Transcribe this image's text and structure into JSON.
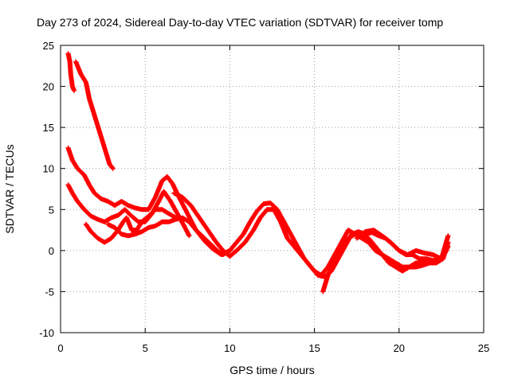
{
  "chart_data": {
    "type": "scatter",
    "title": "Day 273 of 2024, Sidereal Day-to-day VTEC variation (SDTVAR) for receiver tomp",
    "xlabel": "GPS time / hours",
    "ylabel": "SDTVAR / TECUs",
    "xlim": [
      0,
      25
    ],
    "ylim": [
      -10,
      25
    ],
    "xticks": [
      0,
      5,
      10,
      15,
      20,
      25
    ],
    "yticks": [
      -10,
      -5,
      0,
      5,
      10,
      15,
      20,
      25
    ],
    "grid": true,
    "marker": "+",
    "series_color": "#ff0000",
    "series": [
      {
        "name": "track-1",
        "points": [
          [
            0.45,
            24.0
          ],
          [
            0.55,
            23.0
          ],
          [
            0.6,
            21.5
          ],
          [
            0.7,
            20.0
          ],
          [
            0.8,
            19.5
          ]
        ]
      },
      {
        "name": "track-2",
        "points": [
          [
            0.9,
            23.0
          ],
          [
            1.2,
            21.5
          ],
          [
            1.5,
            20.5
          ],
          [
            1.7,
            18.5
          ],
          [
            2.0,
            16.5
          ],
          [
            2.3,
            14.5
          ],
          [
            2.6,
            12.5
          ],
          [
            2.9,
            10.5
          ],
          [
            3.1,
            10.0
          ]
        ]
      },
      {
        "name": "track-3",
        "points": [
          [
            0.45,
            12.5
          ],
          [
            0.7,
            11.0
          ],
          [
            1.0,
            10.0
          ],
          [
            1.4,
            9.2
          ],
          [
            1.7,
            8.0
          ],
          [
            2.0,
            7.0
          ],
          [
            2.4,
            6.3
          ],
          [
            2.8,
            6.0
          ],
          [
            3.2,
            5.5
          ],
          [
            3.6,
            6.0
          ],
          [
            4.0,
            5.5
          ],
          [
            4.4,
            5.2
          ],
          [
            4.8,
            5.0
          ],
          [
            5.2,
            5.0
          ],
          [
            5.6,
            6.5
          ],
          [
            6.0,
            8.5
          ],
          [
            6.3,
            9.0
          ],
          [
            6.6,
            8.2
          ],
          [
            7.0,
            6.5
          ],
          [
            7.5,
            4.5
          ],
          [
            8.0,
            2.5
          ],
          [
            8.5,
            1.2
          ],
          [
            9.0,
            0.2
          ],
          [
            9.5,
            -0.5
          ],
          [
            10.0,
            0.0
          ]
        ]
      },
      {
        "name": "track-4",
        "points": [
          [
            0.45,
            8.0
          ],
          [
            0.7,
            7.0
          ],
          [
            1.0,
            6.0
          ],
          [
            1.4,
            5.0
          ],
          [
            1.8,
            4.2
          ],
          [
            2.2,
            3.8
          ],
          [
            2.6,
            3.5
          ],
          [
            3.0,
            4.0
          ],
          [
            3.4,
            4.3
          ],
          [
            3.8,
            5.0
          ],
          [
            4.2,
            4.2
          ],
          [
            4.6,
            3.5
          ],
          [
            5.0,
            3.5
          ],
          [
            5.4,
            4.5
          ],
          [
            5.8,
            6.0
          ],
          [
            6.1,
            7.2
          ],
          [
            6.5,
            6.0
          ],
          [
            6.9,
            4.5
          ],
          [
            7.3,
            3.0
          ],
          [
            7.6,
            1.8
          ]
        ]
      },
      {
        "name": "track-5",
        "points": [
          [
            1.5,
            3.2
          ],
          [
            1.8,
            2.3
          ],
          [
            2.2,
            1.5
          ],
          [
            2.6,
            1.0
          ],
          [
            3.0,
            1.5
          ],
          [
            3.4,
            2.5
          ],
          [
            3.7,
            3.5
          ],
          [
            3.9,
            4.0
          ],
          [
            4.2,
            2.5
          ],
          [
            4.5,
            2.5
          ],
          [
            4.8,
            3.5
          ],
          [
            5.2,
            4.2
          ],
          [
            5.6,
            5.0
          ],
          [
            6.0,
            5.0
          ],
          [
            6.4,
            4.5
          ],
          [
            6.8,
            4.0
          ]
        ]
      },
      {
        "name": "track-6",
        "points": [
          [
            2.8,
            3.2
          ],
          [
            3.2,
            2.8
          ],
          [
            3.6,
            2.0
          ],
          [
            4.0,
            1.8
          ],
          [
            4.4,
            2.0
          ],
          [
            4.8,
            2.3
          ],
          [
            5.2,
            2.8
          ],
          [
            5.6,
            3.0
          ],
          [
            6.0,
            3.5
          ],
          [
            6.4,
            3.5
          ],
          [
            6.8,
            3.8
          ],
          [
            7.2,
            4.0
          ],
          [
            7.6,
            3.5
          ],
          [
            8.0,
            2.5
          ],
          [
            8.5,
            1.5
          ],
          [
            9.0,
            0.5
          ],
          [
            9.5,
            -0.5
          ]
        ]
      },
      {
        "name": "track-7",
        "points": [
          [
            6.7,
            7.0
          ],
          [
            7.2,
            6.5
          ],
          [
            7.7,
            5.5
          ],
          [
            8.2,
            4.0
          ],
          [
            8.7,
            2.5
          ],
          [
            9.2,
            1.0
          ],
          [
            9.6,
            0.0
          ],
          [
            10.0,
            -0.7
          ],
          [
            10.4,
            0.0
          ],
          [
            10.9,
            1.0
          ],
          [
            11.4,
            2.5
          ],
          [
            11.8,
            4.0
          ],
          [
            12.2,
            5.0
          ],
          [
            12.6,
            5.0
          ],
          [
            13.0,
            3.5
          ],
          [
            13.4,
            1.5
          ],
          [
            13.8,
            0.5
          ],
          [
            14.2,
            -0.5
          ],
          [
            14.6,
            -1.5
          ],
          [
            15.0,
            -2.5
          ],
          [
            15.4,
            -3.0
          ],
          [
            15.8,
            -2.0
          ],
          [
            16.2,
            -0.5
          ],
          [
            16.6,
            1.0
          ],
          [
            17.0,
            2.5
          ],
          [
            17.4,
            2.0
          ],
          [
            17.8,
            1.5
          ],
          [
            18.2,
            1.0
          ],
          [
            18.6,
            0.0
          ],
          [
            19.0,
            -0.5
          ],
          [
            19.4,
            -1.0
          ],
          [
            19.8,
            -1.5
          ],
          [
            20.2,
            -2.0
          ],
          [
            20.6,
            -2.0
          ],
          [
            21.0,
            -1.5
          ],
          [
            21.5,
            -1.5
          ],
          [
            22.0,
            -1.5
          ],
          [
            22.5,
            -1.0
          ],
          [
            22.9,
            0.5
          ]
        ]
      },
      {
        "name": "track-8",
        "points": [
          [
            9.2,
            0.0
          ],
          [
            9.6,
            -0.5
          ],
          [
            10.0,
            0.0
          ],
          [
            10.4,
            1.0
          ],
          [
            10.8,
            2.0
          ],
          [
            11.2,
            3.5
          ],
          [
            11.6,
            4.8
          ],
          [
            12.0,
            5.7
          ],
          [
            12.4,
            5.8
          ],
          [
            12.8,
            5.0
          ],
          [
            13.2,
            3.5
          ],
          [
            13.6,
            2.0
          ],
          [
            14.0,
            0.5
          ],
          [
            14.4,
            -1.0
          ],
          [
            14.8,
            -2.0
          ],
          [
            15.2,
            -3.0
          ],
          [
            15.6,
            -3.2
          ],
          [
            16.0,
            -2.5
          ],
          [
            16.4,
            -1.0
          ],
          [
            16.8,
            0.5
          ],
          [
            17.2,
            2.0
          ],
          [
            17.6,
            2.3
          ],
          [
            18.0,
            2.0
          ],
          [
            18.4,
            2.2
          ],
          [
            18.8,
            1.8
          ],
          [
            19.2,
            1.5
          ],
          [
            19.6,
            0.8
          ],
          [
            20.0,
            0.0
          ],
          [
            20.4,
            -0.5
          ],
          [
            20.8,
            -0.5
          ],
          [
            21.2,
            -1.0
          ],
          [
            21.6,
            -1.0
          ],
          [
            22.0,
            -1.2
          ],
          [
            22.5,
            -1.0
          ],
          [
            22.9,
            1.8
          ]
        ]
      },
      {
        "name": "track-9",
        "points": [
          [
            15.5,
            -5.0
          ],
          [
            15.8,
            -3.0
          ],
          [
            16.2,
            -1.0
          ],
          [
            16.6,
            0.5
          ],
          [
            17.0,
            1.5
          ],
          [
            17.4,
            2.0
          ],
          [
            17.8,
            1.8
          ],
          [
            18.2,
            1.5
          ],
          [
            18.6,
            0.5
          ],
          [
            19.0,
            -0.5
          ],
          [
            19.4,
            -1.5
          ],
          [
            19.8,
            -2.0
          ],
          [
            20.2,
            -2.5
          ],
          [
            20.6,
            -2.0
          ],
          [
            21.0,
            -2.0
          ],
          [
            21.4,
            -1.8
          ],
          [
            21.8,
            -1.5
          ],
          [
            22.2,
            -1.5
          ],
          [
            22.6,
            -1.0
          ],
          [
            22.9,
            1.0
          ]
        ]
      },
      {
        "name": "track-10",
        "points": [
          [
            17.5,
            1.5
          ],
          [
            18.0,
            2.3
          ],
          [
            18.5,
            2.5
          ],
          [
            19.0,
            1.8
          ],
          [
            19.5,
            1.0
          ],
          [
            20.0,
            0.0
          ],
          [
            20.5,
            -0.5
          ],
          [
            21.0,
            0.0
          ],
          [
            21.5,
            -0.3
          ],
          [
            22.0,
            -0.5
          ],
          [
            22.5,
            -1.0
          ],
          [
            22.8,
            0.0
          ]
        ]
      }
    ]
  }
}
